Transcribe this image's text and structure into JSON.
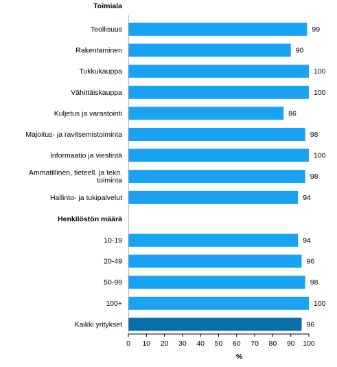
{
  "chart_data": {
    "type": "bar",
    "orientation": "horizontal",
    "groups": [
      {
        "header": "Toimiala",
        "categories": [
          [
            "Teollisuus"
          ],
          [
            "Rakentaminen"
          ],
          [
            "Tukkukauppa"
          ],
          [
            "Vähittäiskauppa"
          ],
          [
            "Kuljetus ja varastointi"
          ],
          [
            "Majoitus- ja ravitsemistoiminta"
          ],
          [
            "Informaatio ja viestintä"
          ],
          [
            "Ammatillinen, tieteell. ja tekn.",
            "toiminta"
          ],
          [
            "Hallinto- ja tukipalvelut"
          ]
        ],
        "values": [
          99,
          90,
          100,
          100,
          86,
          98,
          100,
          98,
          94
        ]
      },
      {
        "header": "Henkilöstön määrä",
        "categories": [
          [
            "10-19"
          ],
          [
            "20-49"
          ],
          [
            "50-99"
          ],
          [
            "100+"
          ],
          [
            "Kaikki yritykset"
          ]
        ],
        "values": [
          94,
          96,
          98,
          100,
          96
        ]
      }
    ],
    "highlight_category": "Kaikki yritykset",
    "colors": {
      "bar": "#1aa3f2",
      "highlight": "#0a6eaa",
      "axis": "#000000"
    },
    "xlabel": "%",
    "xlim": [
      0,
      100
    ],
    "xticks": [
      0,
      10,
      20,
      30,
      40,
      50,
      60,
      70,
      80,
      90,
      100
    ],
    "grid": false,
    "legend": "none"
  }
}
